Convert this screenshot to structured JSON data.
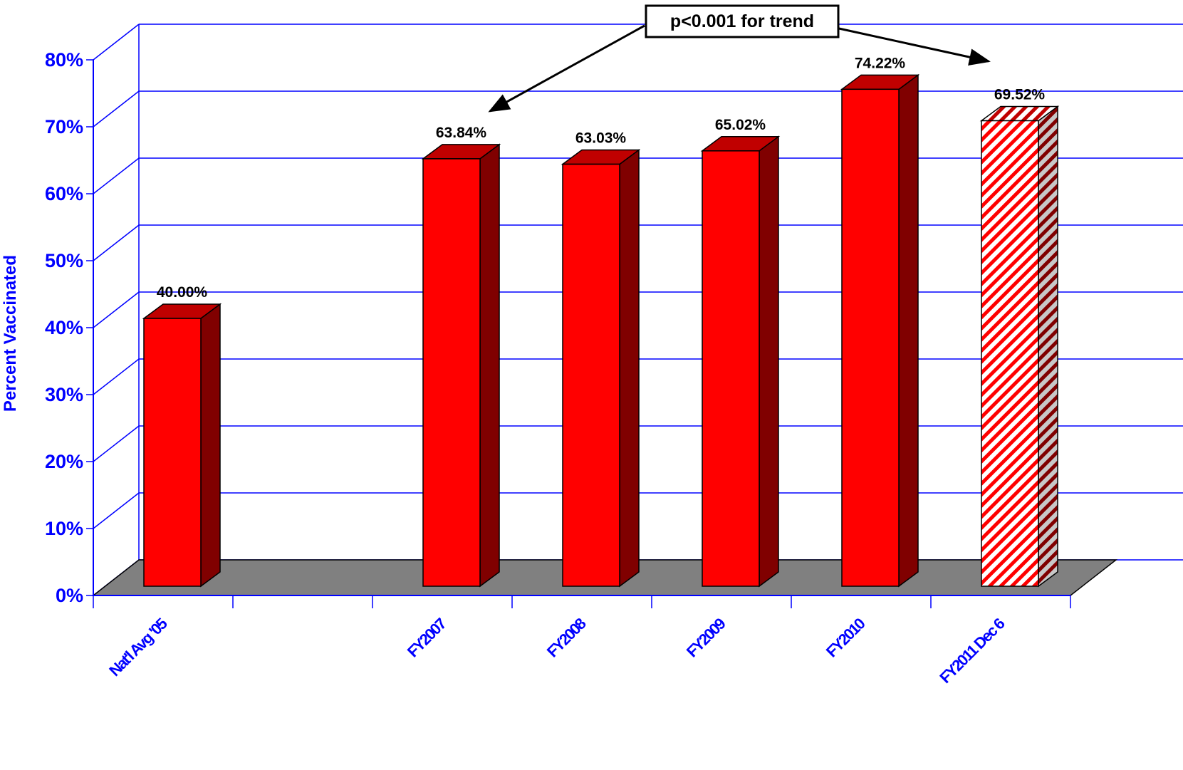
{
  "chart_data": {
    "type": "bar",
    "categories": [
      "Nat'l Avg '05",
      "",
      "FY2007",
      "FY2008",
      "FY2009",
      "FY2010",
      "FY2011 Dec 6"
    ],
    "values": [
      40.0,
      null,
      63.84,
      63.03,
      65.02,
      74.22,
      69.52
    ],
    "data_labels": [
      "40.00%",
      "",
      "63.84%",
      "63.03%",
      "65.02%",
      "74.22%",
      "69.52%"
    ],
    "hatched": [
      false,
      false,
      false,
      false,
      false,
      false,
      true
    ],
    "title": "",
    "xlabel": "",
    "ylabel": "Percent Vaccinated",
    "ylim": [
      0,
      80
    ],
    "yticks": [
      "0%",
      "10%",
      "20%",
      "30%",
      "40%",
      "50%",
      "60%",
      "70%",
      "80%"
    ],
    "grid": true,
    "three_d": true,
    "annotation": "p<0.001 for trend",
    "colors": {
      "bar_front": "#ff0000",
      "bar_side": "#800000",
      "bar_top": "#c00000",
      "floor": "#808080",
      "grid": "#0000ff",
      "text_axis": "#0000ff"
    }
  }
}
